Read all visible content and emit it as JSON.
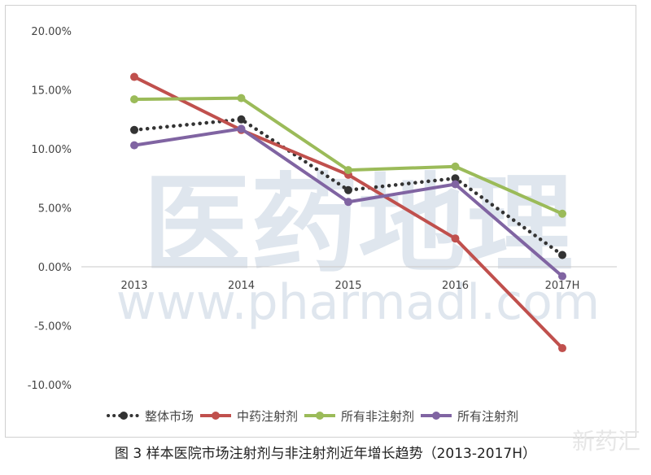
{
  "chart_data": {
    "type": "line",
    "title": "图 3  样本医院市场注射剂与非注射剂近年增长趋势（2013-2017H）",
    "categories": [
      "2013",
      "2014",
      "2015",
      "2016",
      "2017H"
    ],
    "ylim": [
      -10,
      20
    ],
    "yticks": [
      "-10.00%",
      "-5.00%",
      "0.00%",
      "5.00%",
      "10.00%",
      "15.00%",
      "20.00%"
    ],
    "ytick_values": [
      -10,
      -5,
      0,
      5,
      10,
      15,
      20
    ],
    "unit": "%",
    "grid": false,
    "legend_position": "bottom",
    "series": [
      {
        "name": "整体市场",
        "color": "#333333",
        "style": "dotted",
        "values": [
          11.6,
          12.5,
          6.5,
          7.5,
          1.0
        ]
      },
      {
        "name": "中药注射剂",
        "color": "#c0504d",
        "style": "solid",
        "values": [
          16.1,
          11.6,
          7.8,
          2.4,
          -6.9
        ]
      },
      {
        "name": "所有非注射剂",
        "color": "#9bbb59",
        "style": "solid",
        "values": [
          14.2,
          14.3,
          8.2,
          8.5,
          4.5
        ]
      },
      {
        "name": "所有注射剂",
        "color": "#8064a2",
        "style": "solid",
        "values": [
          10.3,
          11.7,
          5.5,
          7.0,
          -0.8
        ]
      }
    ]
  },
  "watermark": {
    "cn": "医药地理",
    "url": "www.pharmadl.com",
    "corner": "新药汇"
  }
}
